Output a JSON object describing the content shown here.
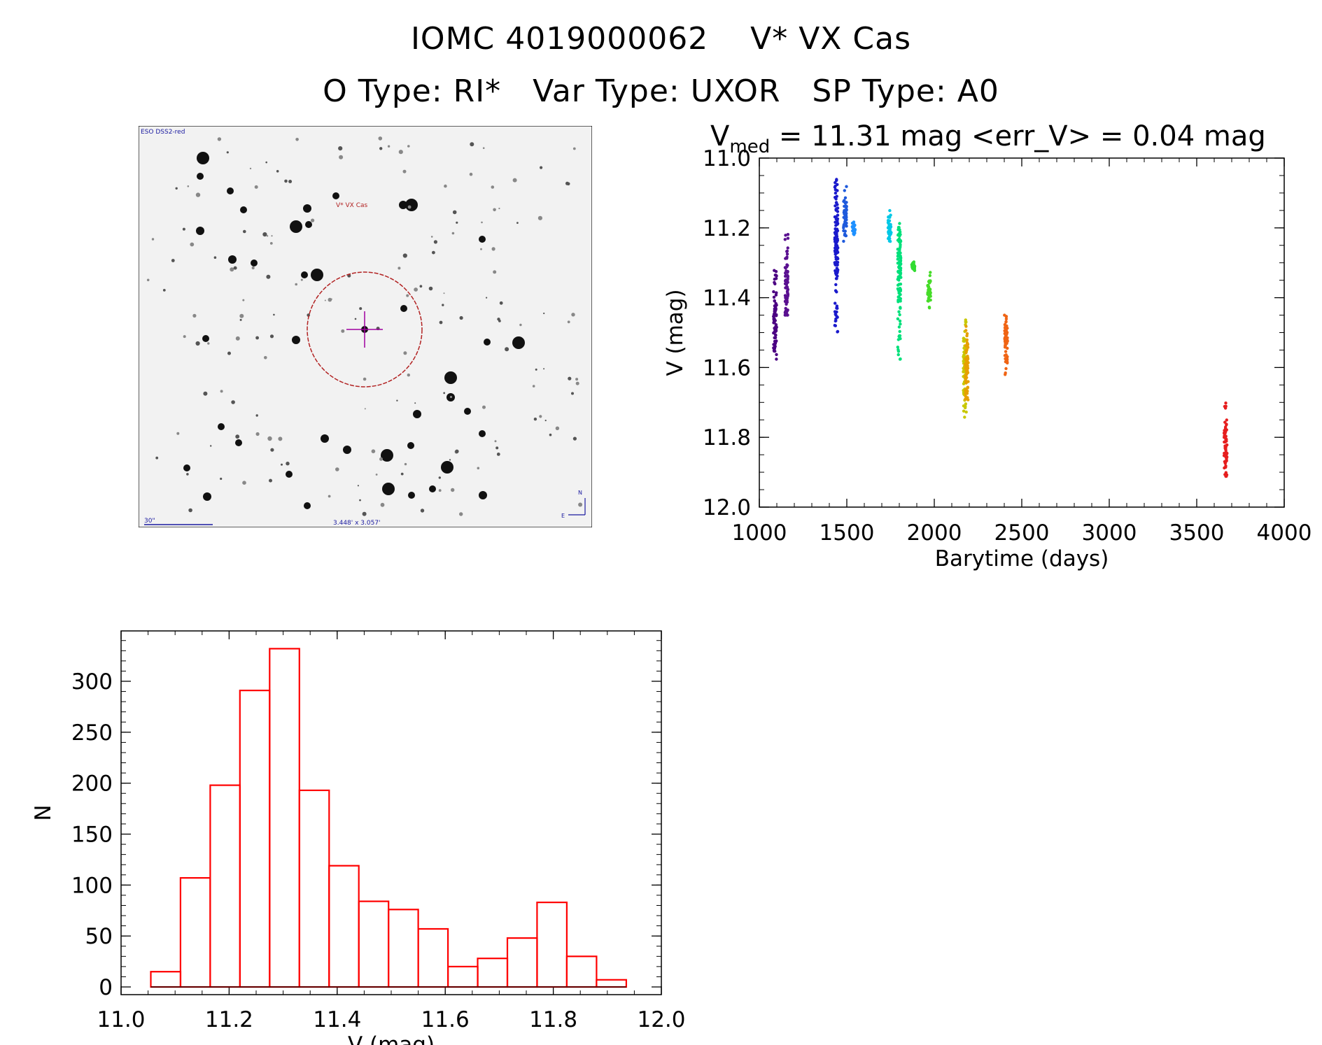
{
  "title": {
    "line1": "IOMC 4019000062    V* VX Cas",
    "line2": "O Type: RI*   Var Type: UXOR   SP Type: A0"
  },
  "finder_chart": {
    "survey_label": "ESO DSS2-red",
    "target_label": "V* VX Cas",
    "scale_label": "30\"",
    "fov_label": "3.448' x 3.057'",
    "north_label": "N",
    "east_label": "E"
  },
  "chart_data": [
    {
      "type": "scatter",
      "title_main": "V",
      "title_sub": "med",
      "title_rest": " = 11.31 mag <err_V> = 0.04 mag",
      "xlabel": "Barytime (days)",
      "ylabel": "V (mag)",
      "xlim": [
        1000,
        4000
      ],
      "ylim": [
        12.0,
        11.0
      ],
      "y_inverted": true,
      "xticks": [
        "1000",
        "1500",
        "2000",
        "2500",
        "3000",
        "3500",
        "4000"
      ],
      "yticks": [
        "11.0",
        "11.2",
        "11.4",
        "11.6",
        "11.8",
        "12.0"
      ],
      "clusters": [
        {
          "x": 1090,
          "ymin": 11.32,
          "ymax": 11.58,
          "ycenter": 11.47,
          "color": "#4b0082"
        },
        {
          "x": 1155,
          "ymin": 11.2,
          "ymax": 11.45,
          "ycenter": 11.38,
          "color": "#5a1090"
        },
        {
          "x": 1440,
          "ymin": 11.06,
          "ymax": 11.5,
          "ycenter": 11.24,
          "color": "#1a1acc"
        },
        {
          "x": 1490,
          "ymin": 11.08,
          "ymax": 11.24,
          "ycenter": 11.17,
          "color": "#1e5adc"
        },
        {
          "x": 1540,
          "ymin": 11.18,
          "ymax": 11.22,
          "ycenter": 11.2,
          "color": "#1e90ff"
        },
        {
          "x": 1745,
          "ymin": 11.13,
          "ymax": 11.24,
          "ycenter": 11.2,
          "color": "#00c8e6"
        },
        {
          "x": 1800,
          "ymin": 11.18,
          "ymax": 11.58,
          "ycenter": 11.32,
          "color": "#00e07a"
        },
        {
          "x": 1880,
          "ymin": 11.29,
          "ymax": 11.33,
          "ycenter": 11.31,
          "color": "#32dc32"
        },
        {
          "x": 1970,
          "ymin": 11.32,
          "ymax": 11.43,
          "ycenter": 11.38,
          "color": "#46dc28"
        },
        {
          "x": 2175,
          "ymin": 11.46,
          "ymax": 11.76,
          "ycenter": 11.6,
          "color": "#c8c800"
        },
        {
          "x": 2185,
          "ymin": 11.48,
          "ymax": 11.7,
          "ycenter": 11.59,
          "color": "#e6a000"
        },
        {
          "x": 2410,
          "ymin": 11.45,
          "ymax": 11.63,
          "ycenter": 11.53,
          "color": "#f06414"
        },
        {
          "x": 3665,
          "ymin": 11.7,
          "ymax": 11.92,
          "ycenter": 11.83,
          "color": "#e61e1e"
        }
      ]
    },
    {
      "type": "bar",
      "xlabel": "V (mag)",
      "ylabel": "N",
      "xlim": [
        11.0,
        12.0
      ],
      "ylim": [
        0,
        340
      ],
      "xticks": [
        "11.0",
        "11.2",
        "11.4",
        "11.6",
        "11.8",
        "12.0"
      ],
      "yticks": [
        "0",
        "50",
        "100",
        "150",
        "200",
        "250",
        "300"
      ],
      "bin_width": 0.055,
      "bin_start": 11.055,
      "values": [
        15,
        107,
        198,
        291,
        332,
        193,
        119,
        84,
        76,
        57,
        20,
        28,
        48,
        83,
        30,
        7
      ],
      "color": "#ff0000"
    }
  ]
}
